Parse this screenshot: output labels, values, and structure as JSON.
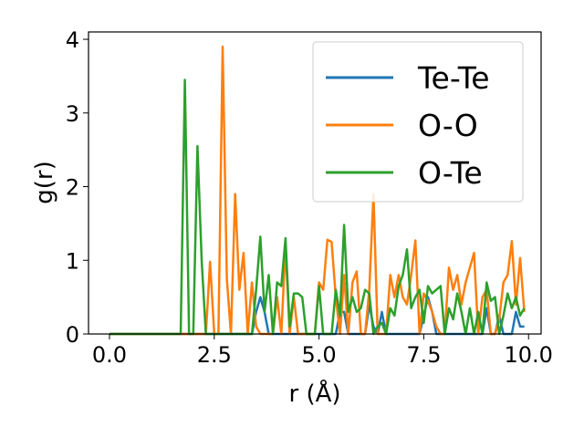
{
  "chart_data": {
    "type": "line",
    "xlabel": "r (Å)",
    "ylabel": "g(r)",
    "xlim": [
      -0.5,
      10.3
    ],
    "ylim": [
      0,
      4.1
    ],
    "xticks": [
      0.0,
      2.5,
      5.0,
      7.5,
      10.0
    ],
    "xtick_labels": [
      "0.0",
      "2.5",
      "5.0",
      "7.5",
      "10.0"
    ],
    "yticks": [
      0,
      1,
      2,
      3,
      4
    ],
    "ytick_labels": [
      "0",
      "1",
      "2",
      "3",
      "4"
    ],
    "legend_position": "top-right",
    "grid": false,
    "series": [
      {
        "name": "Te-Te",
        "color": "#1f77b4",
        "x": [
          0.0,
          3.0,
          3.2,
          3.4,
          3.5,
          3.6,
          3.7,
          3.8,
          4.0,
          5.0,
          5.4,
          5.5,
          5.6,
          5.7,
          5.8,
          6.0,
          6.1,
          6.2,
          6.3,
          6.4,
          6.5,
          6.6,
          6.8,
          7.0,
          7.2,
          7.4,
          7.5,
          7.6,
          7.7,
          7.8,
          7.9,
          8.0,
          8.8,
          8.9,
          9.0,
          9.1,
          9.2,
          9.3,
          9.4,
          9.5,
          9.6,
          9.7,
          9.8,
          9.9
        ],
        "y": [
          0.0,
          0.0,
          0.0,
          0.0,
          0.3,
          0.5,
          0.3,
          0.0,
          0.0,
          0.0,
          0.0,
          0.3,
          0.3,
          0.0,
          0.0,
          0.0,
          0.0,
          0.4,
          0.1,
          0.0,
          0.3,
          0.0,
          0.0,
          0.0,
          0.0,
          0.0,
          0.25,
          0.5,
          0.3,
          0.0,
          0.0,
          0.0,
          0.0,
          0.0,
          0.35,
          0.0,
          0.0,
          0.25,
          0.0,
          0.0,
          0.0,
          0.3,
          0.1,
          0.1
        ]
      },
      {
        "name": "O-O",
        "color": "#ff7f0e",
        "x": [
          0.0,
          2.2,
          2.3,
          2.4,
          2.5,
          2.6,
          2.7,
          2.8,
          2.9,
          3.0,
          3.1,
          3.2,
          3.3,
          3.4,
          3.5,
          3.6,
          3.7,
          3.8,
          3.9,
          4.0,
          4.1,
          4.2,
          4.3,
          4.4,
          4.5,
          4.6,
          4.7,
          4.8,
          4.9,
          5.0,
          5.1,
          5.2,
          5.3,
          5.4,
          5.5,
          5.6,
          5.7,
          5.8,
          5.9,
          6.0,
          6.1,
          6.2,
          6.3,
          6.4,
          6.5,
          6.6,
          6.7,
          6.8,
          6.9,
          7.0,
          7.1,
          7.2,
          7.3,
          7.4,
          7.5,
          7.6,
          7.7,
          7.8,
          7.9,
          8.0,
          8.1,
          8.2,
          8.3,
          8.4,
          8.5,
          8.6,
          8.7,
          8.8,
          8.9,
          9.0,
          9.1,
          9.2,
          9.3,
          9.4,
          9.5,
          9.6,
          9.7,
          9.8,
          9.9
        ],
        "y": [
          0.0,
          0.0,
          0.0,
          0.98,
          0.0,
          0.0,
          3.9,
          0.75,
          0.0,
          1.9,
          0.6,
          1.1,
          0.0,
          0.7,
          0.1,
          0.0,
          0.0,
          0.0,
          0.0,
          0.5,
          0.0,
          1.2,
          0.0,
          0.5,
          0.0,
          0.0,
          0.0,
          0.0,
          0.0,
          0.7,
          0.6,
          1.28,
          1.25,
          0.5,
          0.0,
          0.8,
          0.0,
          0.7,
          0.85,
          0.0,
          0.0,
          0.6,
          1.9,
          0.0,
          0.0,
          0.0,
          0.8,
          0.5,
          0.8,
          0.5,
          0.4,
          0.8,
          1.27,
          0.0,
          0.55,
          0.45,
          0.3,
          0.1,
          0.0,
          0.0,
          0.9,
          0.6,
          0.8,
          0.4,
          0.7,
          0.9,
          1.1,
          0.0,
          0.5,
          0.6,
          0.0,
          0.0,
          0.2,
          0.7,
          0.8,
          1.26,
          0.4,
          1.03,
          0.3
        ]
      },
      {
        "name": "O-Te",
        "color": "#2ca02c",
        "x": [
          0.0,
          1.7,
          1.8,
          1.9,
          2.0,
          2.1,
          2.2,
          2.3,
          3.3,
          3.4,
          3.5,
          3.6,
          3.7,
          3.8,
          3.9,
          4.0,
          4.1,
          4.2,
          4.3,
          4.4,
          4.5,
          4.6,
          4.7,
          4.8,
          4.9,
          5.0,
          5.1,
          5.2,
          5.3,
          5.4,
          5.5,
          5.6,
          5.7,
          5.8,
          5.9,
          6.0,
          6.1,
          6.2,
          6.3,
          6.4,
          6.5,
          6.6,
          6.7,
          6.8,
          6.9,
          7.0,
          7.1,
          7.2,
          7.3,
          7.4,
          7.5,
          7.6,
          7.7,
          7.8,
          7.9,
          8.0,
          8.1,
          8.2,
          8.3,
          8.4,
          8.5,
          8.6,
          8.7,
          8.8,
          8.9,
          9.0,
          9.1,
          9.2,
          9.3,
          9.4,
          9.5,
          9.6,
          9.7,
          9.8,
          9.9
        ],
        "y": [
          0.0,
          0.0,
          3.45,
          0.0,
          0.0,
          2.55,
          1.0,
          0.0,
          0.0,
          0.0,
          0.6,
          1.32,
          0.3,
          0.8,
          0.0,
          0.7,
          0.65,
          1.3,
          0.1,
          0.55,
          0.55,
          0.5,
          0.0,
          0.0,
          0.0,
          0.65,
          0.0,
          0.0,
          0.0,
          0.6,
          0.25,
          1.48,
          0.3,
          0.5,
          0.3,
          0.35,
          0.6,
          0.55,
          0.0,
          0.1,
          0.15,
          0.0,
          0.35,
          0.25,
          0.65,
          0.8,
          1.15,
          0.35,
          0.5,
          0.6,
          0.15,
          0.65,
          0.55,
          0.6,
          0.65,
          0.0,
          0.35,
          0.2,
          0.55,
          0.3,
          0.0,
          0.35,
          0.0,
          0.3,
          0.0,
          0.7,
          0.45,
          0.5,
          0.0,
          0.25,
          0.55,
          0.35,
          0.5,
          0.25,
          0.35
        ]
      }
    ]
  }
}
